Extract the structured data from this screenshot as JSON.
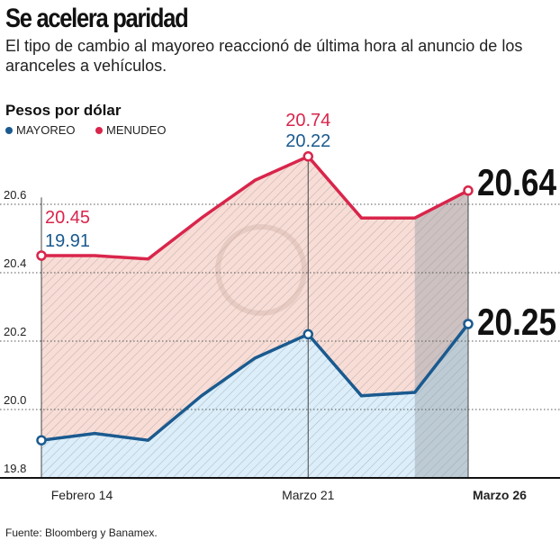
{
  "title": "Se acelera paridad",
  "subtitle": "El tipo de cambio al mayoreo reaccionó de última hora al anuncio de los aranceles a vehículos.",
  "source": "Fuente: Bloomberg y Banamex.",
  "colors": {
    "mayoreo": "#1a5a8f",
    "menudeo": "#d9254b",
    "mayoreo_fill": "#dbeefa",
    "menudeo_fill": "#f8ddd6",
    "highlight": "#9aa0a8"
  },
  "chart_data": {
    "type": "area",
    "title": "Se acelera paridad",
    "ylabel": "Pesos por dólar",
    "ylim": [
      19.8,
      20.8
    ],
    "yticks": [
      19.8,
      20.0,
      20.2,
      20.4,
      20.6
    ],
    "ytick_labels": [
      "19.8",
      "20.0",
      "20.2",
      "20.4",
      "20.6"
    ],
    "x": [
      0,
      1,
      2,
      3,
      4,
      5,
      6,
      7,
      8
    ],
    "xtick_labels": [
      {
        "i": 0,
        "label": "Febrero 14"
      },
      {
        "i": 5,
        "label": "Marzo 21"
      },
      {
        "i": 8,
        "label": "Marzo 26"
      }
    ],
    "grid": "horizontal dotted",
    "legend": "top-left",
    "series": [
      {
        "name": "MAYOREO",
        "values": [
          19.91,
          19.93,
          19.91,
          20.04,
          20.15,
          20.22,
          20.04,
          20.05,
          20.25
        ]
      },
      {
        "name": "MENUDEO",
        "values": [
          20.45,
          20.45,
          20.44,
          20.56,
          20.67,
          20.74,
          20.56,
          20.56,
          20.64
        ]
      }
    ],
    "annotations": [
      {
        "i": 0,
        "menudeo": "20.45",
        "mayoreo": "19.91"
      },
      {
        "i": 5,
        "menudeo": "20.74",
        "mayoreo": "20.22"
      },
      {
        "i": 8,
        "menudeo": "20.64",
        "mayoreo": "20.25"
      }
    ]
  }
}
